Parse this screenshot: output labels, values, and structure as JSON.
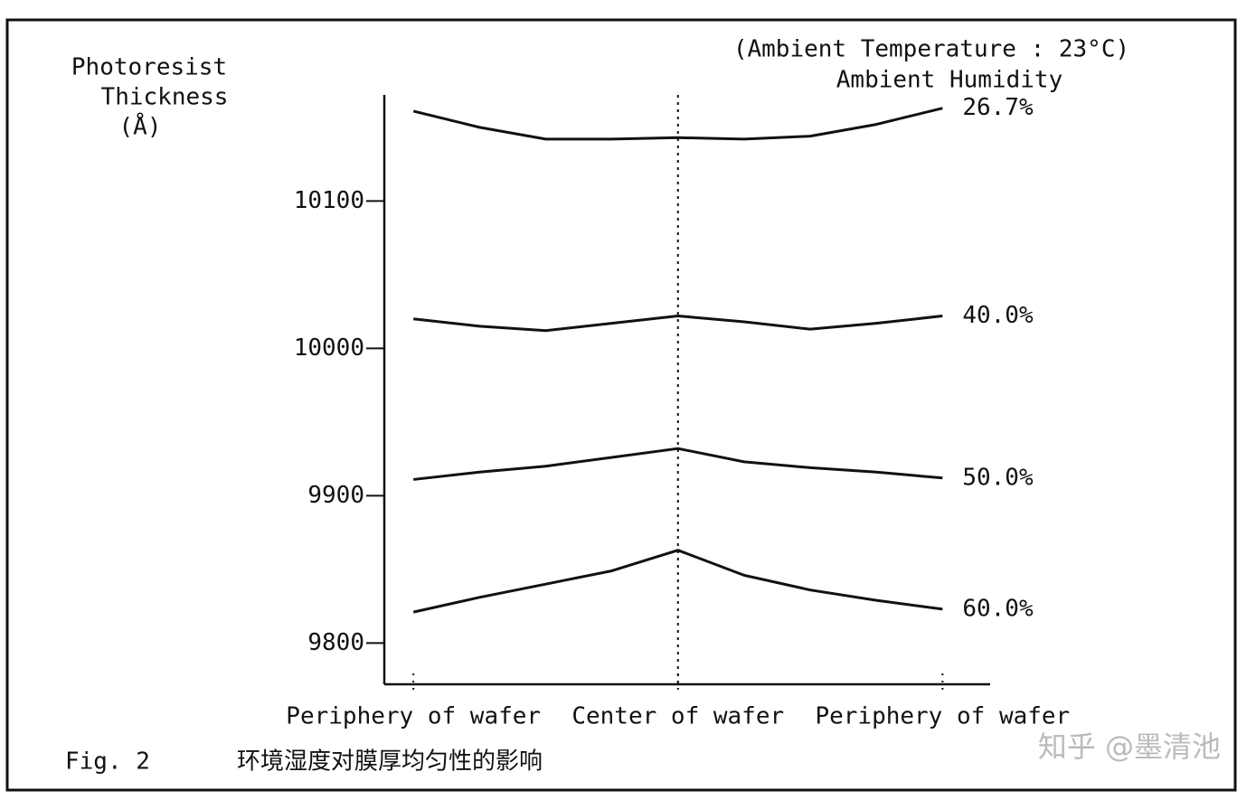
{
  "chart_data": {
    "type": "line",
    "header": [
      "(Ambient Temperature : 23°C)",
      "Ambient Humidity"
    ],
    "y_label": [
      "Photoresist",
      "Thickness",
      "(Å)"
    ],
    "caption": {
      "figure": "Fig. 2",
      "text": "环境湿度对膜厚均匀性的影响"
    },
    "watermark": "知乎 @墨清池",
    "x": [
      -1,
      -0.75,
      -0.5,
      -0.25,
      0,
      0.25,
      0.5,
      0.75,
      1
    ],
    "xlim": [
      -1.11,
      1.18
    ],
    "xticks": [
      {
        "value": -1,
        "label": "Periphery of wafer"
      },
      {
        "value": 0,
        "label": "Center of wafer"
      },
      {
        "value": 1,
        "label": "Periphery of wafer"
      }
    ],
    "ylim": [
      9772,
      10172
    ],
    "yticks": [
      9800,
      9900,
      10000,
      10100
    ],
    "series": [
      {
        "name": "26.7%",
        "color": "#111111",
        "values": [
          10161,
          10150,
          10142,
          10142,
          10143,
          10142,
          10144,
          10152,
          10163
        ]
      },
      {
        "name": "40.0%",
        "color": "#111111",
        "values": [
          10020,
          10015,
          10012,
          10017,
          10022,
          10018,
          10013,
          10017,
          10022
        ]
      },
      {
        "name": "50.0%",
        "color": "#111111",
        "values": [
          9911,
          9916,
          9920,
          9926,
          9932,
          9923,
          9919,
          9916,
          9912
        ]
      },
      {
        "name": "60.0%",
        "color": "#111111",
        "values": [
          9821,
          9831,
          9840,
          9849,
          9863,
          9846,
          9836,
          9829,
          9823
        ]
      }
    ]
  }
}
